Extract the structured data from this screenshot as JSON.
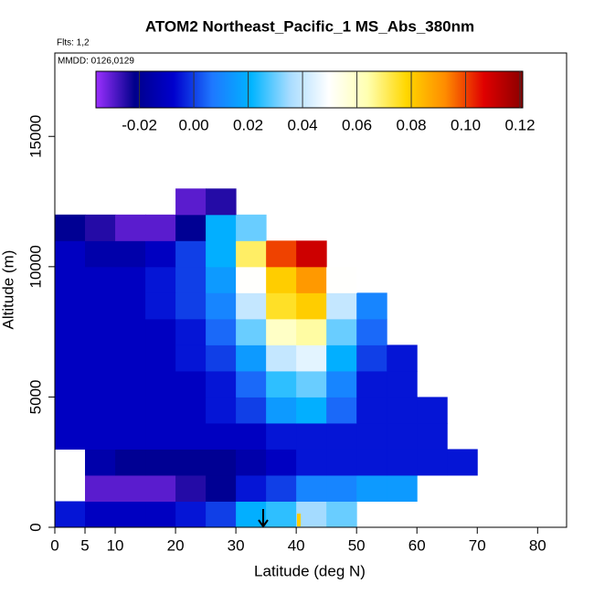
{
  "chart_data": {
    "type": "heatmap",
    "title": "ATOM2 Northeast_Pacific_1 MS_Abs_380nm",
    "subtitle": "Flts: 1,2",
    "annotation": "MMDD: 0126,0129",
    "x_label": "Latitude (deg N)",
    "y_label": "Altitude (m)",
    "xlim": [
      0,
      84.8
    ],
    "ylim": [
      0,
      18200
    ],
    "xticks": [
      0,
      5,
      10,
      20,
      30,
      40,
      50,
      60,
      70,
      80
    ],
    "yticks": [
      0,
      5000,
      10000,
      15000
    ],
    "x_bins": [
      0,
      5,
      10,
      15,
      20,
      25,
      30,
      35,
      40,
      45,
      50,
      55,
      60,
      65,
      70
    ],
    "y_bins": [
      0,
      1000,
      2000,
      3000,
      4000,
      5000,
      6000,
      7000,
      8000,
      9000,
      10000,
      11000,
      12000,
      13000
    ],
    "values": [
      [
        -0.005,
        -0.01,
        -0.01,
        -0.01,
        -0.005,
        0,
        0.02,
        0.025,
        0.035,
        0.03,
        null,
        null,
        null,
        null
      ],
      [
        null,
        -0.03,
        -0.03,
        -0.03,
        -0.025,
        -0.02,
        -0.005,
        0,
        0.01,
        0.01,
        0.015,
        0.015,
        null,
        null
      ],
      [
        null,
        -0.015,
        -0.02,
        -0.02,
        -0.02,
        -0.02,
        -0.015,
        -0.01,
        -0.005,
        -0.005,
        -0.005,
        -0.005,
        -0.005,
        -0.005
      ],
      [
        -0.01,
        -0.01,
        -0.01,
        -0.01,
        -0.01,
        -0.01,
        -0.01,
        -0.005,
        -0.005,
        -0.005,
        -0.005,
        -0.005,
        -0.005,
        null
      ],
      [
        -0.01,
        -0.01,
        -0.01,
        -0.01,
        -0.01,
        -0.005,
        0,
        0.015,
        0.02,
        0.005,
        -0.005,
        -0.005,
        -0.005,
        null
      ],
      [
        -0.01,
        -0.01,
        -0.01,
        -0.01,
        -0.01,
        -0.005,
        0.005,
        0.025,
        0.03,
        0.01,
        -0.005,
        -0.005,
        null,
        null
      ],
      [
        -0.01,
        -0.01,
        -0.01,
        -0.01,
        -0.005,
        0,
        0.015,
        0.04,
        0.045,
        0.02,
        0,
        -0.005,
        null,
        null
      ],
      [
        -0.01,
        -0.01,
        -0.01,
        -0.01,
        -0.005,
        0.005,
        0.03,
        0.06,
        0.065,
        0.03,
        0.005,
        null,
        null,
        null
      ],
      [
        -0.01,
        -0.01,
        -0.01,
        -0.005,
        0,
        0.01,
        0.04,
        0.075,
        0.08,
        0.04,
        0.01,
        null,
        null,
        null
      ],
      [
        -0.01,
        -0.01,
        -0.01,
        -0.005,
        0,
        0.015,
        0.05,
        0.08,
        0.09,
        0.05,
        null,
        null,
        null,
        null
      ],
      [
        -0.01,
        -0.015,
        -0.015,
        -0.01,
        0,
        0.02,
        0.07,
        0.1,
        0.11,
        null,
        null,
        null,
        null,
        null
      ],
      [
        -0.02,
        -0.025,
        -0.03,
        -0.03,
        -0.02,
        0.02,
        0.03,
        null,
        null,
        null,
        null,
        null,
        null,
        null
      ],
      [
        null,
        null,
        null,
        null,
        -0.03,
        -0.025,
        null,
        null,
        null,
        null,
        null,
        null,
        null,
        null
      ]
    ],
    "colorbar": {
      "lim": [
        -0.036,
        0.121
      ],
      "ticks": [
        -0.02,
        {
          "value": 0,
          "label": "0.00"
        },
        0.02,
        0.04,
        0.06,
        0.08,
        {
          "value": 0.1,
          "label": "0.10"
        },
        0.12
      ],
      "colors": [
        "#9b30ff",
        "#00008b",
        "#0000cd",
        "#1e78ff",
        "#00b4ff",
        "#a8dcff",
        "#ffffff",
        "#ffffb0",
        "#ffd700",
        "#ff8c00",
        "#e00000",
        "#8b0000"
      ]
    }
  }
}
